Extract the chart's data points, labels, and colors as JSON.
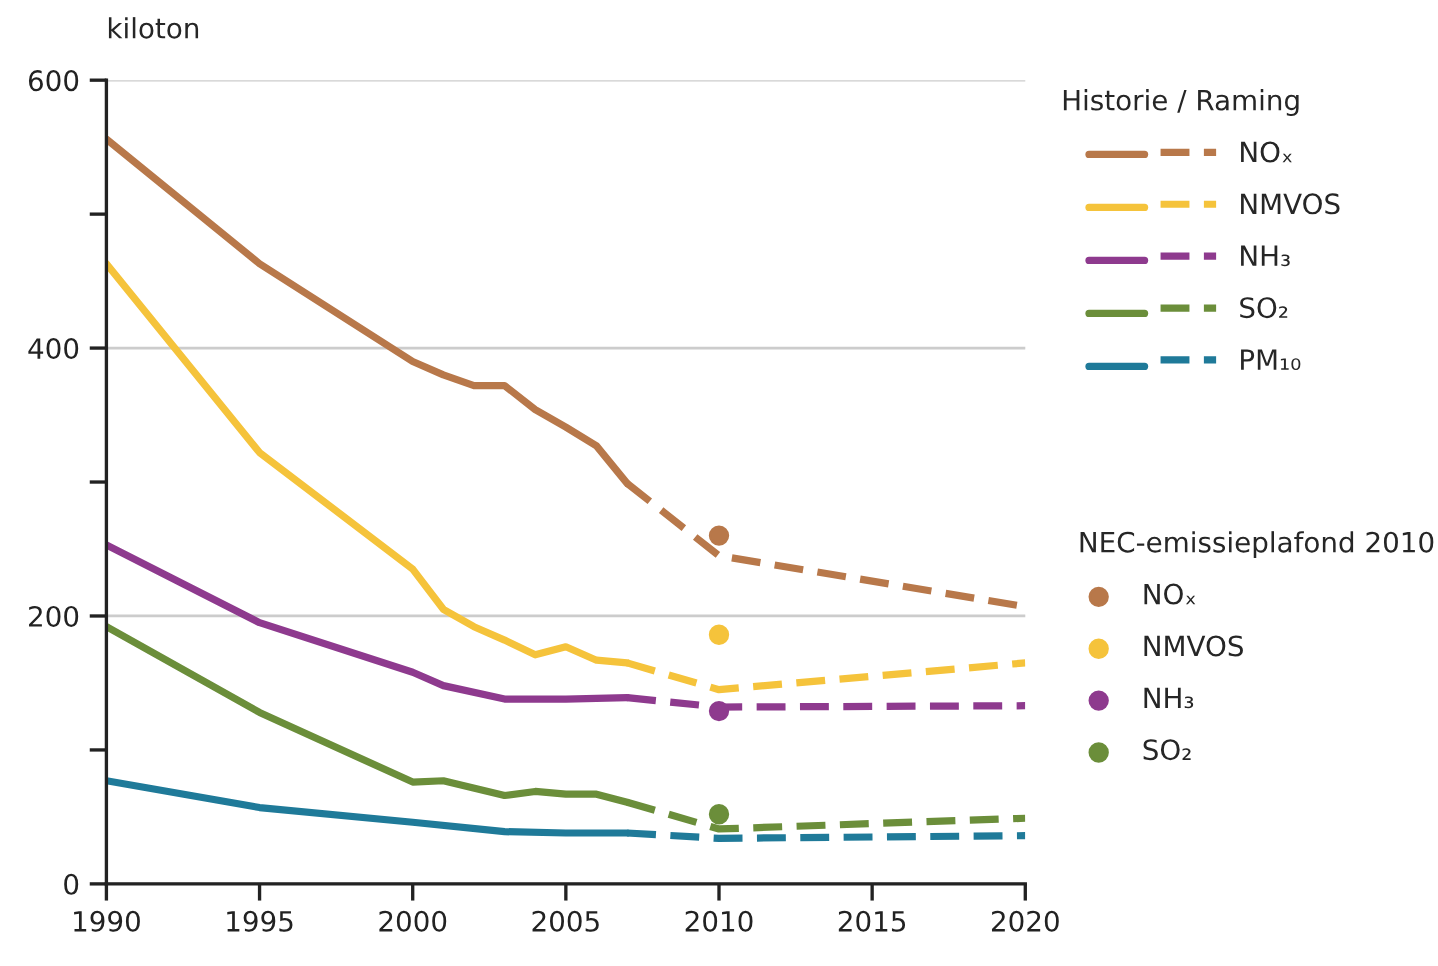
{
  "chart_data": {
    "type": "line",
    "ylabel": "kiloton",
    "legend_title": "Historie / Raming",
    "annotations": [
      "NEC-emissieplafond 2010"
    ],
    "xlim": [
      1990,
      2020
    ],
    "ylim": [
      0,
      600
    ],
    "xticks": [
      1990,
      1995,
      2000,
      2005,
      2010,
      2015,
      2020
    ],
    "yticks": [
      0,
      {
        "value": 100,
        "label": null
      },
      200,
      {
        "value": 300,
        "label": null
      },
      400,
      {
        "value": 500,
        "label": null
      },
      600
    ],
    "grid": "y",
    "legend": "right",
    "series": [
      {
        "line_style": "solid",
        "color": "#b8784a",
        "x": [
          1990,
          1995,
          2000,
          2001,
          2002,
          2003,
          2004,
          2005,
          2006,
          2007
        ],
        "values": [
          556,
          463,
          390,
          380,
          372,
          372,
          354,
          341,
          327,
          299
        ]
      },
      {
        "name": "NOₓ",
        "line_style": "dashed",
        "color": "#b8784a",
        "x": [
          2007,
          2010,
          2020
        ],
        "values": [
          299,
          245,
          207
        ]
      },
      {
        "line_style": "solid",
        "color": "#f5c33b",
        "x": [
          1990,
          1995,
          2000,
          2001,
          2002,
          2003,
          2004,
          2005,
          2006,
          2007
        ],
        "values": [
          463,
          322,
          235,
          205,
          192,
          182,
          171,
          177,
          167,
          165
        ]
      },
      {
        "name": "NMVOS",
        "line_style": "dashed",
        "color": "#f5c33b",
        "x": [
          2007,
          2010,
          2020
        ],
        "values": [
          165,
          145,
          165
        ]
      },
      {
        "line_style": "solid",
        "color": "#8e3a8e",
        "x": [
          1990,
          1995,
          2000,
          2001,
          2003,
          2005,
          2007
        ],
        "values": [
          253,
          195,
          158,
          148,
          138,
          138,
          139
        ]
      },
      {
        "name": "NH₃",
        "line_style": "dashed",
        "color": "#8e3a8e",
        "x": [
          2007,
          2010,
          2020
        ],
        "values": [
          139,
          132,
          133
        ]
      },
      {
        "line_style": "solid",
        "color": "#6b8e3a",
        "x": [
          1990,
          1995,
          2000,
          2001,
          2003,
          2004,
          2005,
          2006,
          2007
        ],
        "values": [
          192,
          128,
          76,
          77,
          66,
          69,
          67,
          67,
          61
        ]
      },
      {
        "name": "SO₂",
        "line_style": "dashed",
        "color": "#6b8e3a",
        "x": [
          2007,
          2010,
          2020
        ],
        "values": [
          61,
          41,
          49
        ]
      },
      {
        "line_style": "solid",
        "color": "#1f7a99",
        "x": [
          1990,
          1995,
          2000,
          2003,
          2005,
          2007
        ],
        "values": [
          77,
          57,
          46,
          39,
          38,
          38
        ]
      },
      {
        "name": "PM₁₀",
        "line_style": "dashed",
        "color": "#1f7a99",
        "x": [
          2007,
          2010,
          2020
        ],
        "values": [
          38,
          34,
          36
        ]
      },
      {
        "name": "NOₓ",
        "type": "scatter",
        "marker": "circle",
        "color": "#b8784a",
        "x": [
          2010
        ],
        "values": [
          260
        ]
      },
      {
        "name": "NMVOS",
        "type": "scatter",
        "marker": "circle",
        "color": "#f5c33b",
        "x": [
          2010
        ],
        "values": [
          186
        ]
      },
      {
        "name": "NH₃",
        "type": "scatter",
        "marker": "circle",
        "color": "#8e3a8e",
        "x": [
          2010
        ],
        "values": [
          129
        ]
      },
      {
        "name": "SO₂",
        "type": "scatter",
        "marker": "circle",
        "color": "#6b8e3a",
        "x": [
          2010
        ],
        "values": [
          52
        ]
      }
    ]
  }
}
